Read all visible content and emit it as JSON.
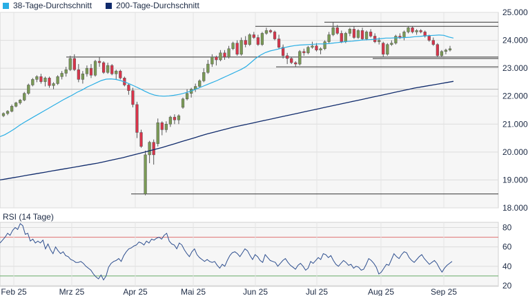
{
  "legend": [
    {
      "name": "38-Tage-Durchschnitt",
      "color": "#29aee5"
    },
    {
      "name": "200-Tage-Durchschnitt",
      "color": "#0f2a6b"
    }
  ],
  "rsi_title": "RSI (14 Tage)",
  "colors": {
    "up": "#7a9a55",
    "down": "#d9344a",
    "ma38": "#29aee5",
    "ma200": "#0f2a6b",
    "rsi": "#2e4f8f",
    "rsi_upper": "#e07070",
    "rsi_lower": "#66aa66",
    "level": "#333333"
  },
  "chart_data": [
    {
      "type": "candlestick",
      "title": "",
      "y_ticks": [
        "25.000",
        "24.000",
        "23.000",
        "22.000",
        "21.000",
        "20.000",
        "19.000",
        "18.000"
      ],
      "ylim": [
        18000,
        25000
      ],
      "x_ticks": [
        "Feb 25",
        "Mrz 25",
        "Apr 25",
        "Mai 25",
        "Jun 25",
        "Jul 25",
        "Aug 25",
        "Sep 25"
      ],
      "grid": true,
      "legend_position": "top-left",
      "candles": [
        {
          "o": 21300,
          "h": 21420,
          "l": 21250,
          "c": 21380
        },
        {
          "o": 21380,
          "h": 21500,
          "l": 21320,
          "c": 21460
        },
        {
          "o": 21460,
          "h": 21700,
          "l": 21420,
          "c": 21640
        },
        {
          "o": 21640,
          "h": 21800,
          "l": 21600,
          "c": 21760
        },
        {
          "o": 21760,
          "h": 21900,
          "l": 21700,
          "c": 21860
        },
        {
          "o": 21860,
          "h": 22150,
          "l": 21820,
          "c": 22100
        },
        {
          "o": 22100,
          "h": 22450,
          "l": 22050,
          "c": 22400
        },
        {
          "o": 22400,
          "h": 22650,
          "l": 22350,
          "c": 22600
        },
        {
          "o": 22600,
          "h": 22750,
          "l": 22500,
          "c": 22700
        },
        {
          "o": 22700,
          "h": 22800,
          "l": 22450,
          "c": 22520
        },
        {
          "o": 22520,
          "h": 22700,
          "l": 22350,
          "c": 22650
        },
        {
          "o": 22650,
          "h": 22700,
          "l": 22300,
          "c": 22380
        },
        {
          "o": 22380,
          "h": 22500,
          "l": 22250,
          "c": 22450
        },
        {
          "o": 22450,
          "h": 22750,
          "l": 22400,
          "c": 22700
        },
        {
          "o": 22700,
          "h": 22900,
          "l": 22600,
          "c": 22820
        },
        {
          "o": 22820,
          "h": 23050,
          "l": 22700,
          "c": 22950
        },
        {
          "o": 22950,
          "h": 23450,
          "l": 22900,
          "c": 23350
        },
        {
          "o": 23350,
          "h": 23500,
          "l": 22900,
          "c": 22950
        },
        {
          "o": 22950,
          "h": 23150,
          "l": 22500,
          "c": 22600
        },
        {
          "o": 22600,
          "h": 22900,
          "l": 22450,
          "c": 22800
        },
        {
          "o": 22800,
          "h": 23100,
          "l": 22700,
          "c": 23000
        },
        {
          "o": 23000,
          "h": 23150,
          "l": 22650,
          "c": 22750
        },
        {
          "o": 22750,
          "h": 23300,
          "l": 22700,
          "c": 23250
        },
        {
          "o": 23250,
          "h": 23400,
          "l": 23050,
          "c": 23200
        },
        {
          "o": 23200,
          "h": 23250,
          "l": 22800,
          "c": 22850
        },
        {
          "o": 22850,
          "h": 23200,
          "l": 22800,
          "c": 23100
        },
        {
          "o": 23100,
          "h": 23150,
          "l": 22750,
          "c": 22800
        },
        {
          "o": 22800,
          "h": 22950,
          "l": 22600,
          "c": 22900
        },
        {
          "o": 22900,
          "h": 22950,
          "l": 22600,
          "c": 22650
        },
        {
          "o": 22650,
          "h": 22700,
          "l": 22350,
          "c": 22400
        },
        {
          "o": 22400,
          "h": 22450,
          "l": 22050,
          "c": 22200
        },
        {
          "o": 22200,
          "h": 22300,
          "l": 21600,
          "c": 21700
        },
        {
          "o": 21700,
          "h": 21800,
          "l": 20500,
          "c": 20700
        },
        {
          "o": 20700,
          "h": 20800,
          "l": 20150,
          "c": 20200
        },
        {
          "o": 18500,
          "h": 20050,
          "l": 18450,
          "c": 19900
        },
        {
          "o": 19900,
          "h": 20400,
          "l": 19600,
          "c": 20350
        },
        {
          "o": 20350,
          "h": 20450,
          "l": 19550,
          "c": 19900
        },
        {
          "o": 20300,
          "h": 21200,
          "l": 20200,
          "c": 21050
        },
        {
          "o": 21050,
          "h": 21100,
          "l": 20600,
          "c": 20800
        },
        {
          "o": 20800,
          "h": 21100,
          "l": 20700,
          "c": 21000
        },
        {
          "o": 21000,
          "h": 21300,
          "l": 20900,
          "c": 21250
        },
        {
          "o": 21250,
          "h": 21350,
          "l": 21000,
          "c": 21150
        },
        {
          "o": 21150,
          "h": 21350,
          "l": 21000,
          "c": 21300
        },
        {
          "o": 21600,
          "h": 21950,
          "l": 21550,
          "c": 21900
        },
        {
          "o": 21900,
          "h": 22250,
          "l": 21850,
          "c": 22100
        },
        {
          "o": 22100,
          "h": 22300,
          "l": 21950,
          "c": 22250
        },
        {
          "o": 22250,
          "h": 22450,
          "l": 22150,
          "c": 22350
        },
        {
          "o": 22350,
          "h": 22600,
          "l": 22300,
          "c": 22550
        },
        {
          "o": 22550,
          "h": 23000,
          "l": 22500,
          "c": 22850
        },
        {
          "o": 22850,
          "h": 23300,
          "l": 22800,
          "c": 23150
        },
        {
          "o": 23150,
          "h": 23500,
          "l": 23050,
          "c": 23400
        },
        {
          "o": 23400,
          "h": 23450,
          "l": 23100,
          "c": 23300
        },
        {
          "o": 23300,
          "h": 23650,
          "l": 23250,
          "c": 23550
        },
        {
          "o": 23550,
          "h": 23650,
          "l": 23300,
          "c": 23400
        },
        {
          "o": 23400,
          "h": 23800,
          "l": 23350,
          "c": 23700
        },
        {
          "o": 23700,
          "h": 23950,
          "l": 23650,
          "c": 23900
        },
        {
          "o": 23900,
          "h": 24000,
          "l": 23450,
          "c": 23500
        },
        {
          "o": 23500,
          "h": 24100,
          "l": 23450,
          "c": 24000
        },
        {
          "o": 24000,
          "h": 24150,
          "l": 23750,
          "c": 23850
        },
        {
          "o": 23850,
          "h": 24250,
          "l": 23800,
          "c": 24200
        },
        {
          "o": 24200,
          "h": 24300,
          "l": 24050,
          "c": 24100
        },
        {
          "o": 24100,
          "h": 24200,
          "l": 23800,
          "c": 23850
        },
        {
          "o": 23850,
          "h": 24300,
          "l": 23800,
          "c": 24250
        },
        {
          "o": 24250,
          "h": 24450,
          "l": 24200,
          "c": 24350
        },
        {
          "o": 24350,
          "h": 24400,
          "l": 24250,
          "c": 24300
        },
        {
          "o": 24300,
          "h": 24350,
          "l": 24000,
          "c": 24050
        },
        {
          "o": 24050,
          "h": 24200,
          "l": 23700,
          "c": 23750
        },
        {
          "o": 23750,
          "h": 23850,
          "l": 23350,
          "c": 23450
        },
        {
          "o": 23450,
          "h": 23550,
          "l": 23150,
          "c": 23350
        },
        {
          "o": 23350,
          "h": 23400,
          "l": 23150,
          "c": 23200
        },
        {
          "o": 23200,
          "h": 23250,
          "l": 23050,
          "c": 23150
        },
        {
          "o": 23150,
          "h": 23650,
          "l": 23100,
          "c": 23600
        },
        {
          "o": 23600,
          "h": 23700,
          "l": 23450,
          "c": 23550
        },
        {
          "o": 23550,
          "h": 23800,
          "l": 23500,
          "c": 23750
        },
        {
          "o": 23750,
          "h": 23950,
          "l": 23700,
          "c": 23800
        },
        {
          "o": 23800,
          "h": 23900,
          "l": 23600,
          "c": 23650
        },
        {
          "o": 23650,
          "h": 23750,
          "l": 23500,
          "c": 23700
        },
        {
          "o": 23700,
          "h": 24000,
          "l": 23650,
          "c": 23950
        },
        {
          "o": 23950,
          "h": 24300,
          "l": 23900,
          "c": 24200
        },
        {
          "o": 24200,
          "h": 24650,
          "l": 24150,
          "c": 24450
        },
        {
          "o": 24450,
          "h": 24550,
          "l": 24200,
          "c": 24250
        },
        {
          "o": 24250,
          "h": 24350,
          "l": 23900,
          "c": 23950
        },
        {
          "o": 23950,
          "h": 24300,
          "l": 23900,
          "c": 24250
        },
        {
          "o": 24250,
          "h": 24450,
          "l": 24150,
          "c": 24400
        },
        {
          "o": 24400,
          "h": 24500,
          "l": 24050,
          "c": 24100
        },
        {
          "o": 24100,
          "h": 24400,
          "l": 24050,
          "c": 24350
        },
        {
          "o": 24350,
          "h": 24450,
          "l": 24000,
          "c": 24050
        },
        {
          "o": 24050,
          "h": 24350,
          "l": 24000,
          "c": 24300
        },
        {
          "o": 24300,
          "h": 24400,
          "l": 24100,
          "c": 24150
        },
        {
          "o": 24150,
          "h": 24250,
          "l": 23900,
          "c": 23950
        },
        {
          "o": 23950,
          "h": 24100,
          "l": 23850,
          "c": 24000
        },
        {
          "o": 23900,
          "h": 23950,
          "l": 23400,
          "c": 23500
        },
        {
          "o": 23500,
          "h": 23900,
          "l": 23450,
          "c": 23850
        },
        {
          "o": 23850,
          "h": 24000,
          "l": 23800,
          "c": 23900
        },
        {
          "o": 23900,
          "h": 24200,
          "l": 23850,
          "c": 24150
        },
        {
          "o": 24150,
          "h": 24250,
          "l": 24050,
          "c": 24100
        },
        {
          "o": 24100,
          "h": 24350,
          "l": 24000,
          "c": 24300
        },
        {
          "o": 24300,
          "h": 24500,
          "l": 24250,
          "c": 24450
        },
        {
          "o": 24450,
          "h": 24500,
          "l": 24250,
          "c": 24300
        },
        {
          "o": 24300,
          "h": 24400,
          "l": 24200,
          "c": 24350
        },
        {
          "o": 24350,
          "h": 24400,
          "l": 24250,
          "c": 24300
        },
        {
          "o": 24300,
          "h": 24350,
          "l": 24100,
          "c": 24150
        },
        {
          "o": 24150,
          "h": 24200,
          "l": 23950,
          "c": 24000
        },
        {
          "o": 24000,
          "h": 24100,
          "l": 23800,
          "c": 23850
        },
        {
          "o": 23850,
          "h": 23900,
          "l": 23400,
          "c": 23450
        },
        {
          "o": 23450,
          "h": 23650,
          "l": 23400,
          "c": 23600
        },
        {
          "o": 23600,
          "h": 23700,
          "l": 23500,
          "c": 23650
        },
        {
          "o": 23650,
          "h": 23800,
          "l": 23600,
          "c": 23700
        }
      ],
      "series": [
        {
          "name": "38-Tage-Durchschnitt",
          "values": [
            20550,
            20620,
            20720,
            20830,
            20950,
            21060,
            21160,
            21260,
            21360,
            21460,
            21560,
            21660,
            21760,
            21860,
            21950,
            22040,
            22140,
            22220,
            22320,
            22400,
            22480,
            22560,
            22610,
            22620,
            22600,
            22560,
            22500,
            22430,
            22350,
            22270,
            22180,
            22100,
            22040,
            22010,
            22000,
            22010,
            22030,
            22060,
            22100,
            22150,
            22210,
            22280,
            22350,
            22420,
            22490,
            22560,
            22640,
            22720,
            22800,
            22880,
            22960,
            23060,
            23200,
            23350,
            23470,
            23560,
            23620,
            23660,
            23700,
            23740,
            23780,
            23810,
            23830,
            23840,
            23850,
            23860,
            23870,
            23870,
            23880,
            23900,
            23920,
            23940,
            23960,
            23970,
            23990,
            24010,
            24020,
            24030,
            24040,
            24060,
            24080,
            24080,
            24090,
            24090,
            24100,
            24110,
            24130,
            24140,
            24160,
            24170,
            24180,
            24190,
            24180,
            24120,
            24080
          ]
        },
        {
          "name": "200-Tage-Durchschnitt",
          "values": [
            19000,
            19040,
            19080,
            19120,
            19160,
            19200,
            19240,
            19280,
            19320,
            19360,
            19400,
            19440,
            19480,
            19520,
            19560,
            19600,
            19650,
            19700,
            19750,
            19800,
            19860,
            19920,
            19980,
            20040,
            20100,
            20160,
            20230,
            20300,
            20370,
            20440,
            20510,
            20580,
            20650,
            20710,
            20770,
            20830,
            20890,
            20940,
            20990,
            21040,
            21090,
            21140,
            21190,
            21240,
            21290,
            21340,
            21390,
            21440,
            21490,
            21540,
            21590,
            21640,
            21690,
            21740,
            21790,
            21840,
            21890,
            21940,
            21990,
            22040,
            22090,
            22140,
            22190,
            22240,
            22290,
            22330,
            22370,
            22410,
            22450,
            22490,
            22530
          ]
        }
      ],
      "levels": [
        24650,
        24500,
        23400,
        23350,
        23050,
        22250,
        18500
      ]
    },
    {
      "type": "line",
      "title": "RSI (14 Tage)",
      "y_ticks": [
        "80",
        "60",
        "40",
        "20"
      ],
      "ylim": [
        20,
        85
      ],
      "reference_lines": [
        70,
        30
      ],
      "series": [
        {
          "name": "RSI",
          "values": [
            64,
            67,
            70,
            74,
            72,
            77,
            80,
            78,
            84,
            82,
            73,
            74,
            66,
            68,
            64,
            66,
            64,
            67,
            58,
            63,
            57,
            53,
            60,
            56,
            53,
            55,
            51,
            50,
            47,
            46,
            44,
            44,
            45,
            43,
            40,
            38,
            36,
            32,
            29,
            27,
            31,
            26,
            30,
            39,
            43,
            45,
            46,
            48,
            45,
            51,
            55,
            58,
            59,
            61,
            62,
            65,
            64,
            62,
            66,
            64,
            68,
            67,
            69,
            70,
            68,
            72,
            74,
            66,
            63,
            62,
            58,
            64,
            62,
            57,
            53,
            50,
            55,
            58,
            52,
            49,
            47,
            45,
            47,
            45,
            44,
            45,
            41,
            38,
            42,
            40,
            46,
            51,
            54,
            55,
            53,
            50,
            54,
            58,
            56,
            51,
            47,
            52,
            50,
            46,
            44,
            52,
            49,
            46,
            45,
            44,
            40,
            43,
            46,
            48,
            44,
            41,
            39,
            37,
            41,
            43,
            40,
            36,
            38,
            45,
            43,
            46,
            49,
            47,
            53,
            52,
            49,
            51,
            46,
            42,
            40,
            43,
            46,
            44,
            41,
            42,
            38,
            40,
            39,
            36,
            37,
            42,
            48,
            46,
            43,
            39,
            32,
            34,
            38,
            42,
            41,
            47,
            53,
            50,
            48,
            52,
            55,
            54,
            49,
            46,
            44,
            47,
            50,
            52,
            48,
            45,
            42,
            44,
            46,
            43,
            38,
            34,
            38,
            41,
            43,
            45
          ]
        }
      ]
    }
  ]
}
